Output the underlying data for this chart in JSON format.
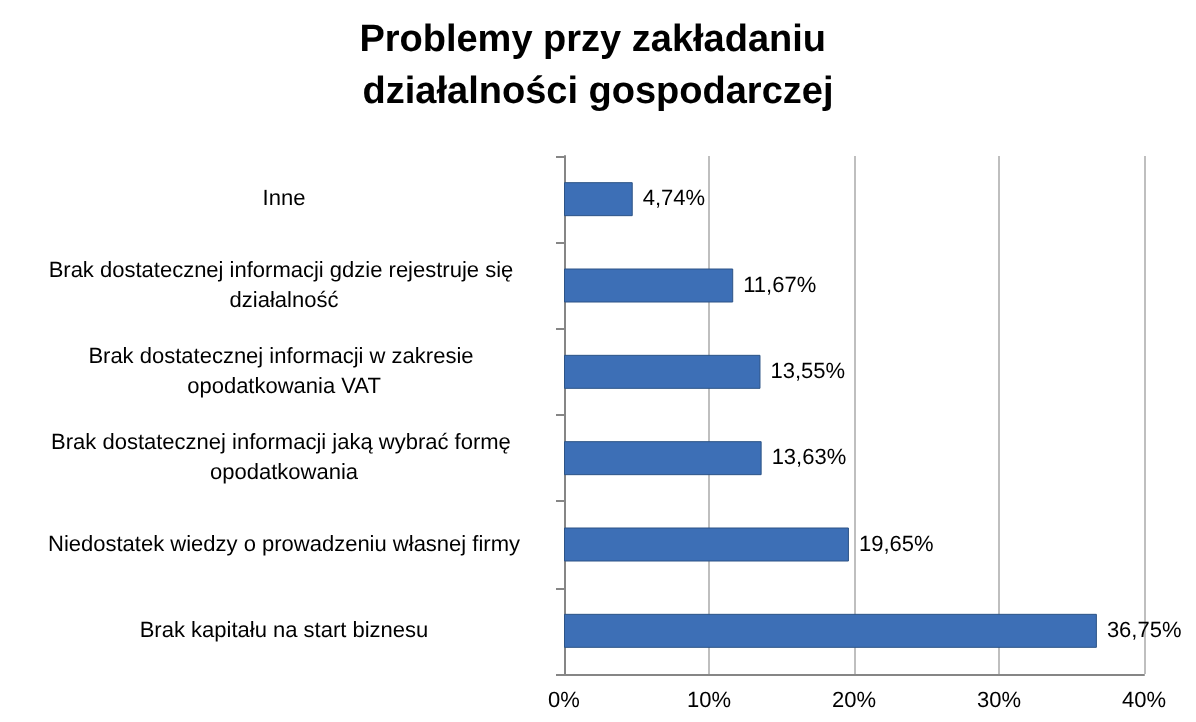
{
  "chart_data": {
    "type": "bar",
    "orientation": "horizontal",
    "title": "Problemy przy zakładaniu działalności gospodarczej",
    "categories": [
      "Inne",
      "Brak dostatecznej informacji gdzie rejestruje się działalność",
      "Brak dostatecznej informacji w zakresie opodatkowania VAT",
      "Brak dostatecznej informacji jaką wybrać formę opodatkowania",
      "Niedostatek wiedzy o prowadzeniu własnej firmy",
      "Brak kapitału na start biznesu"
    ],
    "values": [
      4.74,
      11.67,
      13.55,
      13.63,
      19.65,
      36.75
    ],
    "value_labels": [
      "4,74%",
      "11,67%",
      "13,55%",
      "13,63%",
      "19,65%",
      "36,75%"
    ],
    "color": "#3d6fb6",
    "xlim": [
      0,
      40
    ],
    "xticks": [
      {
        "value": 0,
        "label": "0%"
      },
      {
        "value": 10,
        "label": "10%"
      },
      {
        "value": 20,
        "label": "20%"
      },
      {
        "value": 30,
        "label": "30%"
      },
      {
        "value": 40,
        "label": "40%"
      }
    ],
    "grid": "x"
  }
}
